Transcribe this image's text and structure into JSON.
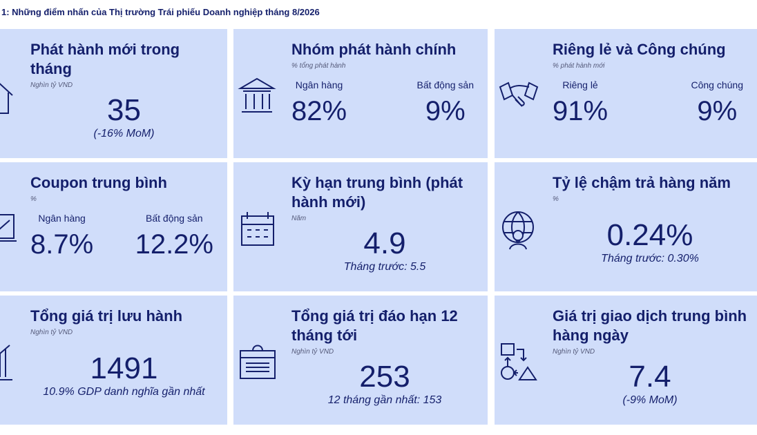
{
  "header": {
    "title": "1: Những điểm nhấn của Thị trường Trái phiếu Doanh nghiệp tháng 8/2026"
  },
  "cards": [
    {
      "title": "Phát hành mới trong tháng",
      "unit": "Nghìn tỷ VND",
      "value": "35",
      "note": "(-16% MoM)"
    },
    {
      "title": "Nhóm phát hành chính",
      "unit": "% tổng phát hành",
      "items": [
        {
          "label": "Ngân hàng",
          "value": "82%"
        },
        {
          "label": "Bất động sản",
          "value": "9%"
        }
      ]
    },
    {
      "title": "Riêng lẻ và Công chúng",
      "unit": "% phát hành mới",
      "items": [
        {
          "label": "Riêng lẻ",
          "value": "91%"
        },
        {
          "label": "Công chúng",
          "value": "9%"
        }
      ]
    },
    {
      "title": "Coupon trung bình",
      "unit": "%",
      "items": [
        {
          "label": "Ngân hàng",
          "value": "8.7%"
        },
        {
          "label": "Bất động sản",
          "value": "12.2%"
        }
      ]
    },
    {
      "title": "Kỳ hạn trung bình (phát hành mới)",
      "unit": "Năm",
      "value": "4.9",
      "note": "Tháng trước: 5.5"
    },
    {
      "title": "Tỷ lệ chậm trả hàng năm",
      "unit": "%",
      "value": "0.24%",
      "note": "Tháng trước: 0.30%"
    },
    {
      "title": "Tổng giá trị lưu hành",
      "unit": "Nghìn tỷ VND",
      "value": "1491",
      "note": "10.9% GDP danh nghĩa gần nhất"
    },
    {
      "title": "Tổng giá trị đáo hạn 12 tháng tới",
      "unit": "Nghìn tỷ VND",
      "value": "253",
      "note": "12 tháng gần nhất: 153"
    },
    {
      "title": "Giá trị giao dịch trung bình hàng ngày",
      "unit": "Nghìn tỷ VND",
      "value": "7.4",
      "note": "(-9% MoM)"
    }
  ]
}
